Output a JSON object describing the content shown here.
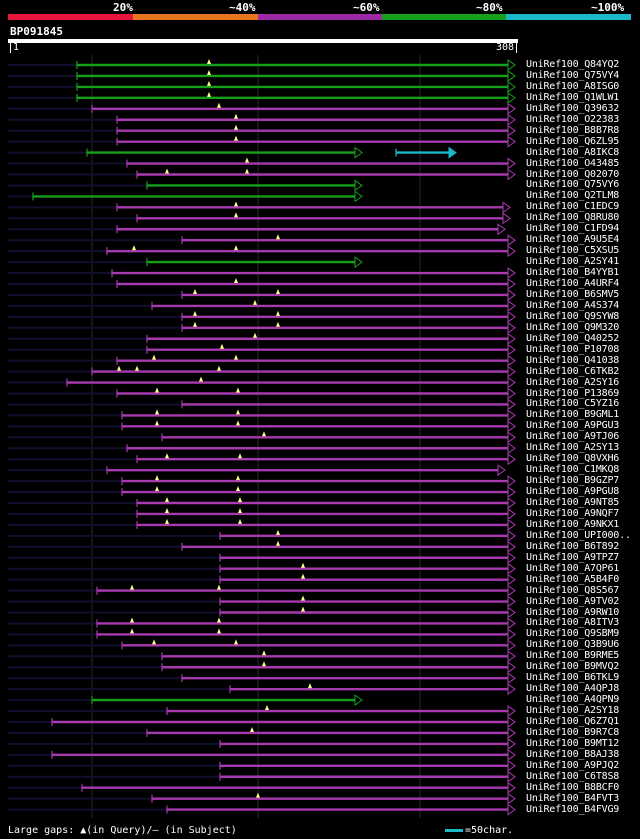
{
  "legend": {
    "labels": [
      "20%",
      "~40%",
      "~60%",
      "~80%",
      "~100%"
    ],
    "colors": [
      "#e8143c",
      "#e8761e",
      "#9c2aa6",
      "#16a01a",
      "#1ab8c8"
    ]
  },
  "query": {
    "id": "BP091845",
    "start": "1",
    "end": "308"
  },
  "colors": {
    "low": "#16a01a",
    "high": "#a83ab0",
    "line": "#10102e",
    "gap_marker": "#ffff88",
    "scale": "#1ab8c8"
  },
  "hits": [
    {
      "name": "UniRef100_Q84YQ2",
      "c": "g",
      "s": [
        [
          77,
          515
        ]
      ],
      "tails": [
        [
          8,
          77
        ]
      ],
      "m": [
        209
      ]
    },
    {
      "name": "UniRef100_Q75VY4",
      "c": "g",
      "s": [
        [
          77,
          515
        ]
      ],
      "tails": [
        [
          8,
          77
        ]
      ],
      "m": [
        209
      ]
    },
    {
      "name": "UniRef100_A8ISG0",
      "c": "g",
      "s": [
        [
          77,
          515
        ]
      ],
      "tails": [
        [
          8,
          77
        ]
      ],
      "m": [
        209
      ]
    },
    {
      "name": "UniRef100_Q1WLW1",
      "c": "g",
      "s": [
        [
          77,
          515
        ]
      ],
      "tails": [
        [
          8,
          77
        ]
      ],
      "m": [
        209
      ]
    },
    {
      "name": "UniRef100_Q39632",
      "c": "p",
      "s": [
        [
          92,
          515
        ]
      ],
      "tails": [
        [
          8,
          92
        ]
      ],
      "m": [
        219
      ]
    },
    {
      "name": "UniRef100_O22383",
      "c": "p",
      "s": [
        [
          117,
          515
        ]
      ],
      "tails": [
        [
          8,
          117
        ]
      ],
      "m": [
        236
      ]
    },
    {
      "name": "UniRef100_B8B7R8",
      "c": "p",
      "s": [
        [
          117,
          515
        ]
      ],
      "tails": [
        [
          8,
          117
        ]
      ],
      "m": [
        236
      ]
    },
    {
      "name": "UniRef100_Q6ZL95",
      "c": "p",
      "s": [
        [
          117,
          515
        ]
      ],
      "tails": [
        [
          8,
          117
        ]
      ],
      "m": [
        236
      ]
    },
    {
      "name": "UniRef100_A8IKC8",
      "c": "g",
      "s": [
        [
          87,
          362
        ],
        [
          396,
          456
        ]
      ],
      "tails": [
        [
          8,
          87
        ]
      ],
      "m": []
    },
    {
      "name": "UniRef100_O43485",
      "c": "p",
      "s": [
        [
          127,
          515
        ]
      ],
      "tails": [
        [
          8,
          127
        ]
      ],
      "m": [
        247
      ]
    },
    {
      "name": "UniRef100_Q02070",
      "c": "p",
      "s": [
        [
          137,
          515
        ]
      ],
      "tails": [
        [
          8,
          137
        ]
      ],
      "m": [
        167,
        247
      ]
    },
    {
      "name": "UniRef100_Q75VY6",
      "c": "g",
      "s": [
        [
          147,
          362
        ]
      ],
      "tails": [
        [
          8,
          147
        ]
      ],
      "m": []
    },
    {
      "name": "UniRef100_Q2TLM8",
      "c": "g",
      "s": [
        [
          33,
          362
        ]
      ],
      "tails": [
        [
          8,
          33
        ]
      ],
      "m": []
    },
    {
      "name": "UniRef100_C1EDC9",
      "c": "p",
      "s": [
        [
          117,
          510
        ]
      ],
      "tails": [
        [
          8,
          117
        ]
      ],
      "m": [
        236
      ]
    },
    {
      "name": "UniRef100_Q8RU80",
      "c": "p",
      "s": [
        [
          137,
          510
        ]
      ],
      "tails": [
        [
          8,
          137
        ]
      ],
      "m": [
        236
      ]
    },
    {
      "name": "UniRef100_C1FD94",
      "c": "p",
      "s": [
        [
          117,
          505
        ]
      ],
      "tails": [
        [
          8,
          117
        ]
      ],
      "m": []
    },
    {
      "name": "UniRef100_A9U5E4",
      "c": "p",
      "s": [
        [
          182,
          515
        ]
      ],
      "tails": [
        [
          8,
          182
        ]
      ],
      "m": [
        278
      ]
    },
    {
      "name": "UniRef100_C5XSU5",
      "c": "p",
      "s": [
        [
          107,
          515
        ]
      ],
      "tails": [
        [
          8,
          107
        ]
      ],
      "m": [
        134,
        236
      ]
    },
    {
      "name": "UniRef100_A2SY41",
      "c": "g",
      "s": [
        [
          147,
          362
        ]
      ],
      "tails": [
        [
          8,
          147
        ]
      ],
      "m": []
    },
    {
      "name": "UniRef100_B4YYB1",
      "c": "p",
      "s": [
        [
          112,
          515
        ]
      ],
      "tails": [
        [
          8,
          112
        ]
      ],
      "m": []
    },
    {
      "name": "UniRef100_A4URF4",
      "c": "p",
      "s": [
        [
          117,
          515
        ]
      ],
      "tails": [
        [
          8,
          117
        ]
      ],
      "m": [
        236
      ]
    },
    {
      "name": "UniRef100_B6SMV5",
      "c": "p",
      "s": [
        [
          182,
          515
        ]
      ],
      "tails": [
        [
          8,
          182
        ]
      ],
      "m": [
        195,
        278
      ]
    },
    {
      "name": "UniRef100_A4S374",
      "c": "p",
      "s": [
        [
          152,
          515
        ]
      ],
      "tails": [
        [
          8,
          152
        ]
      ],
      "m": [
        255
      ]
    },
    {
      "name": "UniRef100_Q9SYW8",
      "c": "p",
      "s": [
        [
          182,
          515
        ]
      ],
      "tails": [
        [
          8,
          182
        ]
      ],
      "m": [
        195,
        278
      ]
    },
    {
      "name": "UniRef100_Q9M320",
      "c": "p",
      "s": [
        [
          182,
          515
        ]
      ],
      "tails": [
        [
          8,
          182
        ]
      ],
      "m": [
        195,
        278
      ]
    },
    {
      "name": "UniRef100_Q40252",
      "c": "p",
      "s": [
        [
          147,
          515
        ]
      ],
      "tails": [
        [
          8,
          147
        ]
      ],
      "m": [
        255
      ]
    },
    {
      "name": "UniRef100_P10708",
      "c": "p",
      "s": [
        [
          147,
          515
        ]
      ],
      "tails": [
        [
          8,
          147
        ]
      ],
      "m": [
        222
      ]
    },
    {
      "name": "UniRef100_Q41038",
      "c": "p",
      "s": [
        [
          117,
          515
        ]
      ],
      "tails": [
        [
          8,
          117
        ]
      ],
      "m": [
        154,
        236
      ]
    },
    {
      "name": "UniRef100_C6TKB2",
      "c": "p",
      "s": [
        [
          92,
          515
        ]
      ],
      "tails": [
        [
          8,
          92
        ]
      ],
      "m": [
        119,
        137,
        219
      ]
    },
    {
      "name": "UniRef100_A2SY16",
      "c": "p",
      "s": [
        [
          67,
          515
        ]
      ],
      "tails": [
        [
          8,
          67
        ]
      ],
      "m": [
        201
      ]
    },
    {
      "name": "UniRef100_P13869",
      "c": "p",
      "s": [
        [
          117,
          515
        ]
      ],
      "tails": [
        [
          8,
          117
        ]
      ],
      "m": [
        157,
        238
      ]
    },
    {
      "name": "UniRef100_C5YZ16",
      "c": "p",
      "s": [
        [
          182,
          515
        ]
      ],
      "tails": [
        [
          8,
          182
        ]
      ],
      "m": []
    },
    {
      "name": "UniRef100_B9GML1",
      "c": "p",
      "s": [
        [
          122,
          515
        ]
      ],
      "tails": [
        [
          8,
          122
        ]
      ],
      "m": [
        157,
        238
      ]
    },
    {
      "name": "UniRef100_A9PGU3",
      "c": "p",
      "s": [
        [
          122,
          515
        ]
      ],
      "tails": [
        [
          8,
          122
        ]
      ],
      "m": [
        157,
        238
      ]
    },
    {
      "name": "UniRef100_A9TJ06",
      "c": "p",
      "s": [
        [
          162,
          515
        ]
      ],
      "tails": [
        [
          8,
          162
        ]
      ],
      "m": [
        264
      ]
    },
    {
      "name": "UniRef100_A2SY13",
      "c": "p",
      "s": [
        [
          127,
          515
        ]
      ],
      "tails": [
        [
          8,
          127
        ]
      ],
      "m": []
    },
    {
      "name": "UniRef100_Q8VXH6",
      "c": "p",
      "s": [
        [
          137,
          515
        ]
      ],
      "tails": [
        [
          8,
          137
        ]
      ],
      "m": [
        167,
        240
      ]
    },
    {
      "name": "UniRef100_C1MKQ8",
      "c": "p",
      "s": [
        [
          107,
          505
        ]
      ],
      "tails": [
        [
          8,
          107
        ]
      ],
      "m": []
    },
    {
      "name": "UniRef100_B9GZP7",
      "c": "p",
      "s": [
        [
          122,
          515
        ]
      ],
      "tails": [
        [
          8,
          122
        ]
      ],
      "m": [
        157,
        238
      ]
    },
    {
      "name": "UniRef100_A9PGU8",
      "c": "p",
      "s": [
        [
          122,
          515
        ]
      ],
      "tails": [
        [
          8,
          122
        ]
      ],
      "m": [
        157,
        238
      ]
    },
    {
      "name": "UniRef100_A9NT85",
      "c": "p",
      "s": [
        [
          137,
          515
        ]
      ],
      "tails": [
        [
          8,
          137
        ]
      ],
      "m": [
        167,
        240
      ]
    },
    {
      "name": "UniRef100_A9NQF7",
      "c": "p",
      "s": [
        [
          137,
          515
        ]
      ],
      "tails": [
        [
          8,
          137
        ]
      ],
      "m": [
        167,
        240
      ]
    },
    {
      "name": "UniRef100_A9NKX1",
      "c": "p",
      "s": [
        [
          137,
          515
        ]
      ],
      "tails": [
        [
          8,
          137
        ]
      ],
      "m": [
        167,
        240
      ]
    },
    {
      "name": "UniRef100_UPI000..",
      "c": "p",
      "s": [
        [
          220,
          515
        ]
      ],
      "tails": [
        [
          8,
          220
        ]
      ],
      "m": [
        278
      ]
    },
    {
      "name": "UniRef100_B6T892",
      "c": "p",
      "s": [
        [
          182,
          515
        ]
      ],
      "tails": [
        [
          8,
          182
        ]
      ],
      "m": [
        278
      ]
    },
    {
      "name": "UniRef100_A9TPZ7",
      "c": "p",
      "s": [
        [
          220,
          515
        ]
      ],
      "tails": [
        [
          8,
          220
        ]
      ],
      "m": []
    },
    {
      "name": "UniRef100_A7QP61",
      "c": "p",
      "s": [
        [
          220,
          515
        ]
      ],
      "tails": [
        [
          8,
          220
        ]
      ],
      "m": [
        303
      ]
    },
    {
      "name": "UniRef100_A5B4F0",
      "c": "p",
      "s": [
        [
          220,
          515
        ]
      ],
      "tails": [
        [
          8,
          220
        ]
      ],
      "m": [
        303
      ]
    },
    {
      "name": "UniRef100_Q8S567",
      "c": "p",
      "s": [
        [
          97,
          515
        ]
      ],
      "tails": [
        [
          8,
          97
        ]
      ],
      "m": [
        132,
        219
      ]
    },
    {
      "name": "UniRef100_A9TV02",
      "c": "p",
      "s": [
        [
          220,
          515
        ]
      ],
      "tails": [
        [
          8,
          220
        ]
      ],
      "m": [
        303
      ]
    },
    {
      "name": "UniRef100_A9RW10",
      "c": "p",
      "s": [
        [
          220,
          515
        ]
      ],
      "tails": [
        [
          8,
          220
        ]
      ],
      "m": [
        303
      ]
    },
    {
      "name": "UniRef100_A8ITV3",
      "c": "p",
      "s": [
        [
          97,
          515
        ]
      ],
      "tails": [
        [
          8,
          97
        ]
      ],
      "m": [
        132,
        219
      ]
    },
    {
      "name": "UniRef100_Q9SBM9",
      "c": "p",
      "s": [
        [
          97,
          515
        ]
      ],
      "tails": [
        [
          8,
          97
        ]
      ],
      "m": [
        132,
        219
      ]
    },
    {
      "name": "UniRef100_Q3B9U6",
      "c": "p",
      "s": [
        [
          122,
          515
        ]
      ],
      "tails": [
        [
          8,
          122
        ]
      ],
      "m": [
        154,
        236
      ]
    },
    {
      "name": "UniRef100_B9RME5",
      "c": "p",
      "s": [
        [
          162,
          515
        ]
      ],
      "tails": [
        [
          8,
          162
        ]
      ],
      "m": [
        264
      ]
    },
    {
      "name": "UniRef100_B9MVQ2",
      "c": "p",
      "s": [
        [
          162,
          515
        ]
      ],
      "tails": [
        [
          8,
          162
        ]
      ],
      "m": [
        264
      ]
    },
    {
      "name": "UniRef100_B6TKL9",
      "c": "p",
      "s": [
        [
          182,
          515
        ]
      ],
      "tails": [
        [
          8,
          182
        ]
      ],
      "m": []
    },
    {
      "name": "UniRef100_A4QPJ8",
      "c": "p",
      "s": [
        [
          230,
          515
        ]
      ],
      "tails": [
        [
          8,
          230
        ]
      ],
      "m": [
        310
      ]
    },
    {
      "name": "UniRef100_A4QPN9",
      "c": "g",
      "s": [
        [
          92,
          362
        ]
      ],
      "tails": [
        [
          8,
          92
        ]
      ],
      "m": []
    },
    {
      "name": "UniRef100_A2SY18",
      "c": "p",
      "s": [
        [
          167,
          515
        ]
      ],
      "tails": [
        [
          8,
          167
        ]
      ],
      "m": [
        267
      ]
    },
    {
      "name": "UniRef100_Q6Z7Q1",
      "c": "p",
      "s": [
        [
          52,
          515
        ]
      ],
      "tails": [
        [
          8,
          52
        ]
      ],
      "m": []
    },
    {
      "name": "UniRef100_B9R7C8",
      "c": "p",
      "s": [
        [
          147,
          515
        ]
      ],
      "tails": [
        [
          8,
          147
        ]
      ],
      "m": [
        252
      ]
    },
    {
      "name": "UniRef100_B9MT12",
      "c": "p",
      "s": [
        [
          220,
          515
        ]
      ],
      "tails": [
        [
          8,
          220
        ]
      ],
      "m": []
    },
    {
      "name": "UniRef100_B8AJ38",
      "c": "p",
      "s": [
        [
          52,
          515
        ]
      ],
      "tails": [
        [
          8,
          52
        ]
      ],
      "m": []
    },
    {
      "name": "UniRef100_A9PJQ2",
      "c": "p",
      "s": [
        [
          220,
          515
        ]
      ],
      "tails": [
        [
          8,
          220
        ]
      ],
      "m": []
    },
    {
      "name": "UniRef100_C6T8S8",
      "c": "p",
      "s": [
        [
          220,
          515
        ]
      ],
      "tails": [
        [
          8,
          220
        ]
      ],
      "m": []
    },
    {
      "name": "UniRef100_B8BCF0",
      "c": "p",
      "s": [
        [
          82,
          515
        ]
      ],
      "tails": [
        [
          8,
          82
        ]
      ],
      "m": []
    },
    {
      "name": "UniRef100_B4FVT3",
      "c": "p",
      "s": [
        [
          152,
          515
        ]
      ],
      "tails": [
        [
          8,
          152
        ]
      ],
      "m": [
        258
      ]
    },
    {
      "name": "UniRef100_B4FVG9",
      "c": "p",
      "s": [
        [
          167,
          515
        ]
      ],
      "tails": [
        [
          8,
          167
        ]
      ],
      "m": []
    }
  ],
  "footer": {
    "left": "Large gaps: ▲(in Query)/– (in Subject)",
    "right": "=50char."
  }
}
